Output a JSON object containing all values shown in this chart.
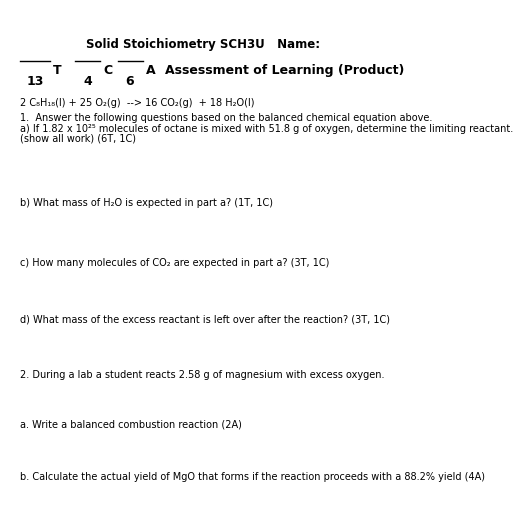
{
  "title": "Solid Stoichiometry SCH3U   Name:",
  "equation": "2 C₈H₁₈(l) + 25 O₂(g)  --> 16 CO₂(g)  + 18 H₂O(l)",
  "q1_intro": "1.  Answer the following questions based on the balanced chemical equation above.",
  "q1a_line1": "a) If 1.82 x 10²⁵ molecules of octane is mixed with 51.8 g of oxygen, determine the limiting reactant.",
  "q1a_line2": "(show all work) (6T, 1C)",
  "q1b": "b) What mass of H₂O is expected in part a? (1T, 1C)",
  "q1c": "c) How many molecules of CO₂ are expected in part a? (3T, 1C)",
  "q1d": "d) What mass of the excess reactant is left over after the reaction? (3T, 1C)",
  "q2_intro": "2. During a lab a student reacts 2.58 g of magnesium with excess oxygen.",
  "q2a": "a. Write a balanced combustion reaction (2A)",
  "q2b": "b. Calculate the actual yield of MgO that forms if the reaction proceeds with a 88.2% yield (4A)",
  "bg_color": "#ffffff",
  "text_color": "#000000",
  "t_label": "T",
  "c_label": "C",
  "a_label": "A",
  "n13": "13",
  "n4": "4",
  "n6": "6",
  "assess_label": "Assessment of Learning (Product)"
}
